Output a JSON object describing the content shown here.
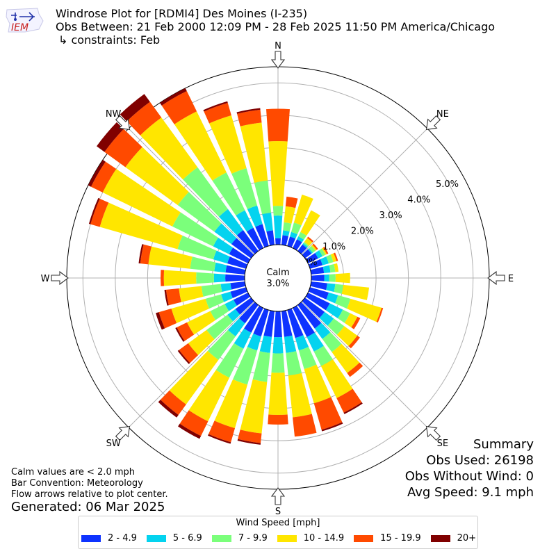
{
  "header": {
    "line1": "Windrose Plot for [RDMI4] Des Moines (I-235)",
    "line2": "Obs Between: 21 Feb 2000 12:09 PM - 28 Feb 2025 11:50 PM America/Chicago",
    "line3": "↳ constraints: Feb",
    "logo_text": "IEM"
  },
  "notes": {
    "calm_note": "Calm values are < 2.0 mph",
    "bar_convention": "Bar Convention: Meteorology",
    "flow_note": "Flow arrows relative to plot center.",
    "generated": "Generated: 06 Mar 2025"
  },
  "summary": {
    "title": "Summary",
    "obs_used": "Obs Used: 26198",
    "obs_without_wind": "Obs Without Wind: 0",
    "avg_speed": "Avg Speed: 9.1 mph"
  },
  "legend": {
    "title": "Wind Speed [mph]"
  },
  "chart_data": {
    "type": "windrose",
    "calm_label": "Calm",
    "calm_value": "3.0%",
    "calm_percent": 3.0,
    "rlim": [
      0,
      5.5
    ],
    "radial_ticks": [
      0,
      1,
      2,
      3,
      4,
      5
    ],
    "radial_tick_labels": [
      "0.0%",
      "1.0%",
      "2.0%",
      "3.0%",
      "4.0%",
      "5.0%"
    ],
    "direction_labels": [
      "N",
      "NE",
      "E",
      "SE",
      "S",
      "SW",
      "W",
      "NW"
    ],
    "bins": [
      {
        "label": "2 - 4.9",
        "color": "#0e33ff"
      },
      {
        "label": "5 - 6.9",
        "color": "#04d3ef"
      },
      {
        "label": "7 - 9.9",
        "color": "#7bff7b"
      },
      {
        "label": "10 - 14.9",
        "color": "#ffe600"
      },
      {
        "label": "15 - 19.9",
        "color": "#ff4a00"
      },
      {
        "label": "20+",
        "color": "#800000"
      }
    ],
    "directions_deg": [
      0,
      10,
      20,
      30,
      40,
      50,
      60,
      70,
      80,
      90,
      100,
      110,
      120,
      130,
      140,
      150,
      160,
      170,
      180,
      190,
      200,
      210,
      220,
      230,
      240,
      250,
      260,
      270,
      280,
      290,
      300,
      310,
      320,
      330,
      340,
      350
    ],
    "cumulative_percent": [
      [
        0.2,
        0.9,
        1.2,
        3.2,
        4.2,
        4.2
      ],
      [
        0.3,
        0.45,
        0.7,
        1.2,
        1.5,
        1.5
      ],
      [
        0.3,
        0.45,
        0.75,
        1.65,
        1.65,
        1.65
      ],
      [
        0.3,
        0.4,
        0.55,
        1.3,
        1.3,
        1.3
      ],
      [
        0.25,
        0.3,
        0.35,
        0.5,
        0.55,
        0.55
      ],
      [
        0.25,
        0.3,
        0.4,
        0.45,
        0.5,
        0.5
      ],
      [
        0.35,
        0.5,
        0.6,
        0.65,
        0.7,
        0.7
      ],
      [
        0.4,
        0.6,
        0.75,
        0.85,
        0.9,
        0.9
      ],
      [
        0.4,
        0.6,
        0.75,
        0.85,
        0.85,
        0.85
      ],
      [
        0.4,
        0.55,
        0.75,
        1.2,
        1.2,
        1.2
      ],
      [
        0.5,
        0.75,
        1.0,
        1.8,
        1.8,
        1.8
      ],
      [
        0.6,
        0.9,
        1.3,
        2.3,
        2.35,
        2.35
      ],
      [
        0.75,
        1.2,
        1.45,
        1.7,
        1.8,
        1.8
      ],
      [
        0.75,
        1.1,
        1.5,
        2.0,
        2.1,
        2.1
      ],
      [
        0.9,
        1.3,
        1.8,
        2.6,
        2.75,
        2.75
      ],
      [
        1.0,
        1.5,
        2.0,
        3.1,
        3.6,
        3.65
      ],
      [
        0.9,
        1.3,
        1.9,
        3.0,
        3.85,
        3.9
      ],
      [
        0.8,
        1.3,
        2.0,
        3.3,
        3.9,
        3.9
      ],
      [
        0.8,
        1.3,
        1.9,
        3.2,
        3.5,
        3.5
      ],
      [
        0.8,
        1.3,
        2.2,
        3.8,
        4.1,
        4.15
      ],
      [
        0.85,
        1.3,
        2.4,
        3.8,
        4.25,
        4.3
      ],
      [
        0.85,
        1.4,
        2.4,
        3.9,
        4.4,
        4.5
      ],
      [
        0.7,
        1.2,
        2.1,
        3.8,
        4.2,
        4.3
      ],
      [
        0.6,
        0.9,
        1.7,
        2.4,
        2.75,
        2.8
      ],
      [
        0.5,
        0.8,
        1.3,
        2.1,
        2.45,
        2.5
      ],
      [
        0.5,
        0.8,
        1.3,
        2.4,
        2.8,
        2.9
      ],
      [
        0.45,
        0.75,
        1.35,
        2.05,
        2.45,
        2.5
      ],
      [
        0.6,
        0.95,
        1.5,
        2.5,
        2.6,
        2.6
      ],
      [
        0.6,
        0.95,
        1.7,
        3.0,
        3.25,
        3.3
      ],
      [
        0.6,
        1.05,
        2.2,
        4.7,
        5.0,
        5.05
      ],
      [
        0.65,
        1.2,
        2.6,
        5.0,
        5.4,
        5.5
      ],
      [
        0.75,
        1.4,
        2.8,
        4.8,
        5.6,
        5.9
      ],
      [
        0.8,
        1.6,
        3.2,
        5.1,
        5.7,
        6.0
      ],
      [
        0.7,
        1.3,
        2.6,
        4.7,
        5.4,
        5.5
      ],
      [
        0.7,
        1.3,
        2.5,
        4.2,
        4.6,
        4.65
      ],
      [
        0.45,
        1.0,
        2.0,
        3.8,
        4.2,
        4.25
      ]
    ]
  }
}
